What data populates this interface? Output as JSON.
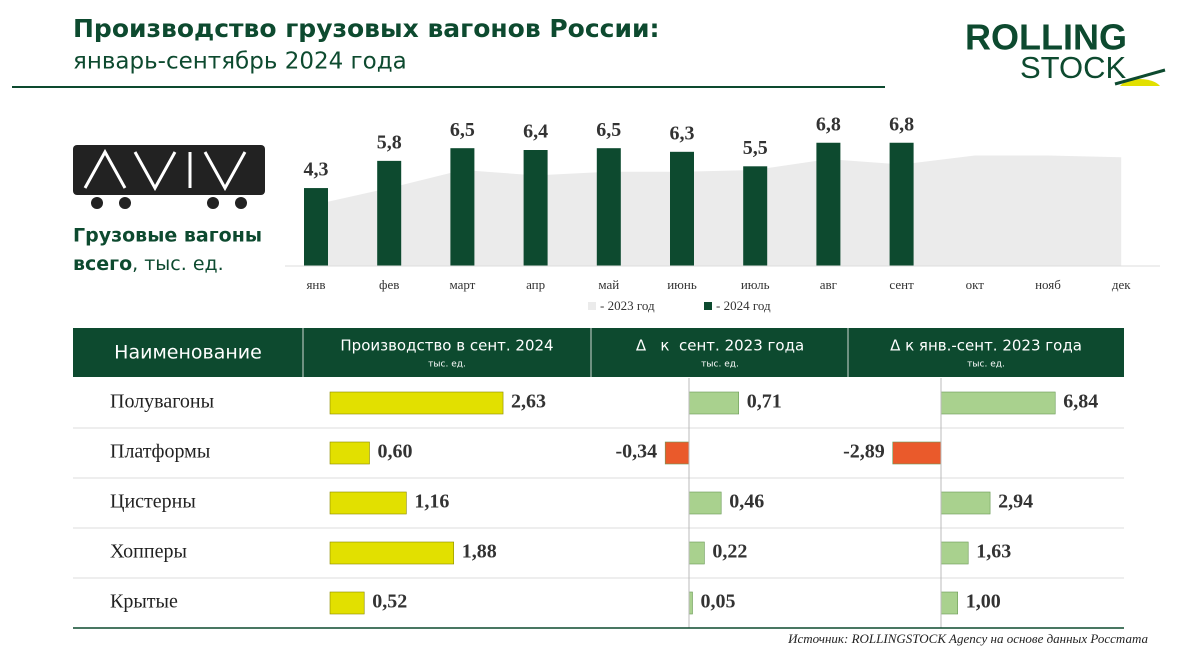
{
  "header": {
    "title": "Производство грузовых вагонов России:",
    "subtitle": "январь-сентябрь 2024 года",
    "logo": [
      "ROLLING",
      "STOCK"
    ]
  },
  "chart_data": {
    "type": "bar",
    "label": [
      "Грузовые вагоны",
      "всего",
      ", тыс. ед."
    ],
    "categories": [
      "янв",
      "фев",
      "март",
      "апр",
      "май",
      "июнь",
      "июль",
      "авг",
      "сент",
      "окт",
      "нояб",
      "дек"
    ],
    "series": [
      {
        "name": "- 2023 год",
        "color": "#ebebeb",
        "style": "area",
        "values": [
          3.4,
          4.3,
          5.3,
          5.0,
          5.2,
          5.2,
          5.3,
          5.9,
          5.6,
          6.1,
          6.1,
          6.0
        ]
      },
      {
        "name": "- 2024 год",
        "color": "#0d4a2f",
        "style": "bar",
        "values": [
          4.3,
          5.8,
          6.5,
          6.4,
          6.5,
          6.3,
          5.5,
          6.8,
          6.8,
          null,
          null,
          null
        ],
        "value_labels": [
          "4,3",
          "5,8",
          "6,5",
          "6,4",
          "6,5",
          "6,3",
          "5,5",
          "6,8",
          "6,8",
          null,
          null,
          null
        ]
      }
    ],
    "ylim": [
      0,
      8
    ]
  },
  "table": {
    "columns": [
      {
        "title": "Наименование"
      },
      {
        "title": "Производство в сент. 2024",
        "unit": "тыс. ед."
      },
      {
        "title": "Δ   к  сент. 2023 года",
        "unit": "тыс. ед."
      },
      {
        "title": "Δ к янв.-сент. 2023 года",
        "unit": "тыс. ед."
      }
    ],
    "colors": {
      "production": "#e2e000",
      "positive": "#a9d18e",
      "negative": "#ea5a2b"
    },
    "rows": [
      {
        "name": "Полувагоны",
        "values": [
          2.63,
          0.71,
          6.84
        ],
        "value_labels": [
          "2,63",
          "0,71",
          "6,84"
        ]
      },
      {
        "name": "Платформы",
        "values": [
          0.6,
          -0.34,
          -2.89
        ],
        "value_labels": [
          "0,60",
          "-0,34",
          "-2,89"
        ]
      },
      {
        "name": "Цистерны",
        "values": [
          1.16,
          0.46,
          2.94
        ],
        "value_labels": [
          "1,16",
          "0,46",
          "2,94"
        ]
      },
      {
        "name": "Хопперы",
        "values": [
          1.88,
          0.22,
          1.63
        ],
        "value_labels": [
          "1,88",
          "0,22",
          "1,63"
        ]
      },
      {
        "name": "Крытые",
        "values": [
          0.52,
          0.05,
          1.0
        ],
        "value_labels": [
          "0,52",
          "0,05",
          "1,00"
        ]
      }
    ]
  },
  "source": "Источник: ROLLINGSTOCK Agency на основе данных Росстата"
}
